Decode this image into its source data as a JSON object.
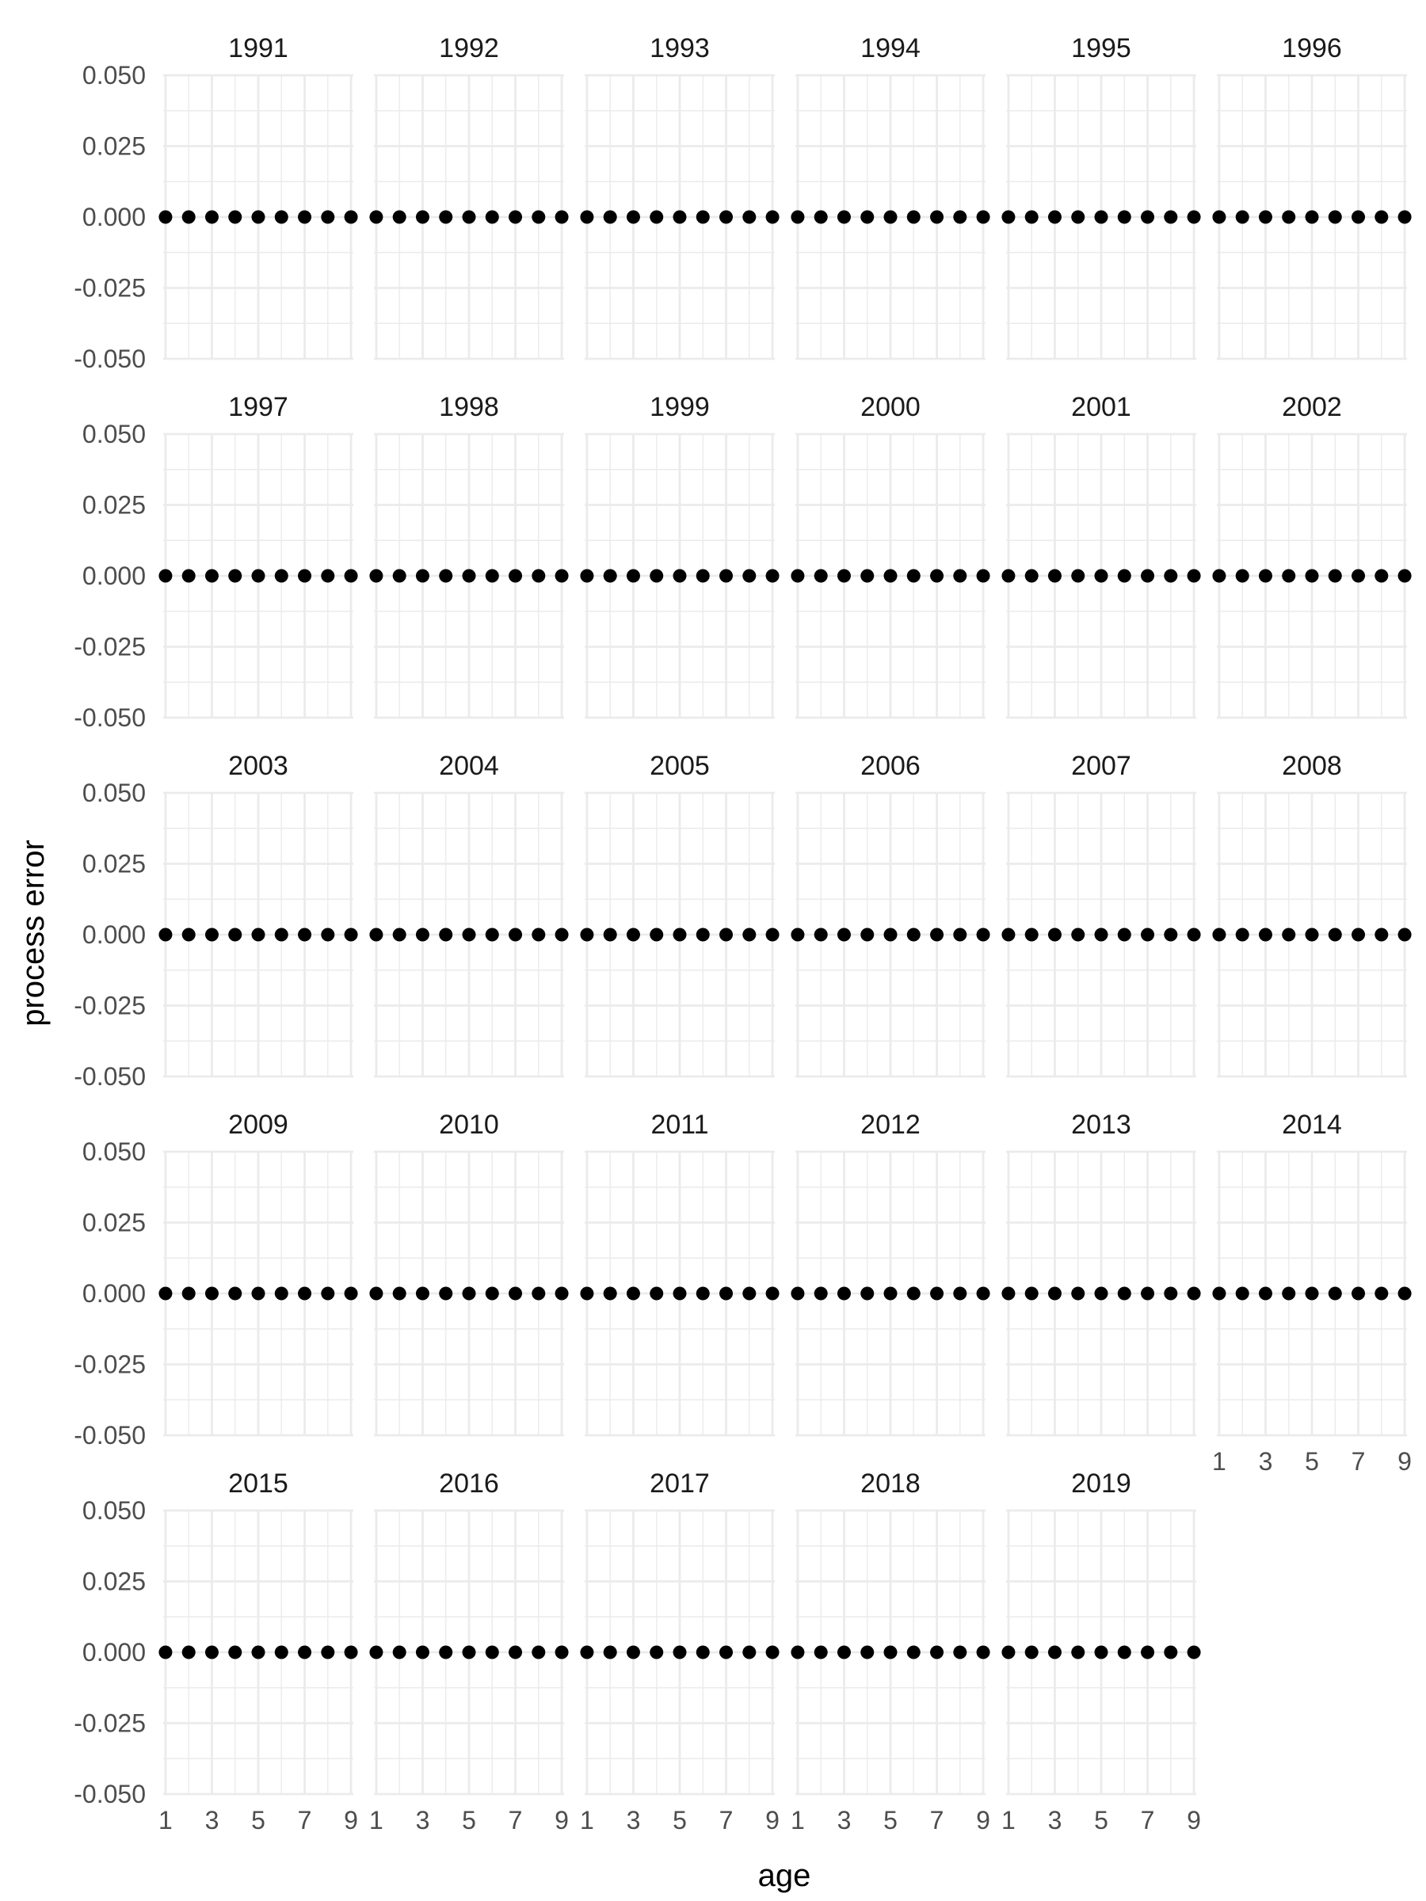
{
  "chart_data": {
    "type": "scatter",
    "layout": "facet grid, 6 columns",
    "xlabel": "age",
    "ylabel": "process error",
    "xlim": [
      0.9,
      9.1
    ],
    "ylim": [
      -0.05,
      0.05
    ],
    "x_ticks": [
      1,
      3,
      5,
      7,
      9
    ],
    "y_ticks": [
      -0.05,
      -0.025,
      0.0,
      0.025,
      0.05
    ],
    "y_tick_labels": [
      "-0.050",
      "-0.025",
      "0.000",
      "0.025",
      "0.050"
    ],
    "x_tick_labels": [
      "1",
      "3",
      "5",
      "7",
      "9"
    ],
    "grid": true,
    "point_color": "#000000",
    "x": [
      1,
      2,
      3,
      4,
      5,
      6,
      7,
      8,
      9
    ],
    "panels": [
      {
        "label": "1991",
        "values": [
          0,
          0,
          0,
          0,
          0,
          0,
          0,
          0,
          0
        ]
      },
      {
        "label": "1992",
        "values": [
          0,
          0,
          0,
          0,
          0,
          0,
          0,
          0,
          0
        ]
      },
      {
        "label": "1993",
        "values": [
          0,
          0,
          0,
          0,
          0,
          0,
          0,
          0,
          0
        ]
      },
      {
        "label": "1994",
        "values": [
          0,
          0,
          0,
          0,
          0,
          0,
          0,
          0,
          0
        ]
      },
      {
        "label": "1995",
        "values": [
          0,
          0,
          0,
          0,
          0,
          0,
          0,
          0,
          0
        ]
      },
      {
        "label": "1996",
        "values": [
          0,
          0,
          0,
          0,
          0,
          0,
          0,
          0,
          0
        ]
      },
      {
        "label": "1997",
        "values": [
          0,
          0,
          0,
          0,
          0,
          0,
          0,
          0,
          0
        ]
      },
      {
        "label": "1998",
        "values": [
          0,
          0,
          0,
          0,
          0,
          0,
          0,
          0,
          0
        ]
      },
      {
        "label": "1999",
        "values": [
          0,
          0,
          0,
          0,
          0,
          0,
          0,
          0,
          0
        ]
      },
      {
        "label": "2000",
        "values": [
          0,
          0,
          0,
          0,
          0,
          0,
          0,
          0,
          0
        ]
      },
      {
        "label": "2001",
        "values": [
          0,
          0,
          0,
          0,
          0,
          0,
          0,
          0,
          0
        ]
      },
      {
        "label": "2002",
        "values": [
          0,
          0,
          0,
          0,
          0,
          0,
          0,
          0,
          0
        ]
      },
      {
        "label": "2003",
        "values": [
          0,
          0,
          0,
          0,
          0,
          0,
          0,
          0,
          0
        ]
      },
      {
        "label": "2004",
        "values": [
          0,
          0,
          0,
          0,
          0,
          0,
          0,
          0,
          0
        ]
      },
      {
        "label": "2005",
        "values": [
          0,
          0,
          0,
          0,
          0,
          0,
          0,
          0,
          0
        ]
      },
      {
        "label": "2006",
        "values": [
          0,
          0,
          0,
          0,
          0,
          0,
          0,
          0,
          0
        ]
      },
      {
        "label": "2007",
        "values": [
          0,
          0,
          0,
          0,
          0,
          0,
          0,
          0,
          0
        ]
      },
      {
        "label": "2008",
        "values": [
          0,
          0,
          0,
          0,
          0,
          0,
          0,
          0,
          0
        ]
      },
      {
        "label": "2009",
        "values": [
          0,
          0,
          0,
          0,
          0,
          0,
          0,
          0,
          0
        ]
      },
      {
        "label": "2010",
        "values": [
          0,
          0,
          0,
          0,
          0,
          0,
          0,
          0,
          0
        ]
      },
      {
        "label": "2011",
        "values": [
          0,
          0,
          0,
          0,
          0,
          0,
          0,
          0,
          0
        ]
      },
      {
        "label": "2012",
        "values": [
          0,
          0,
          0,
          0,
          0,
          0,
          0,
          0,
          0
        ]
      },
      {
        "label": "2013",
        "values": [
          0,
          0,
          0,
          0,
          0,
          0,
          0,
          0,
          0
        ]
      },
      {
        "label": "2014",
        "values": [
          0,
          0,
          0,
          0,
          0,
          0,
          0,
          0,
          0
        ]
      },
      {
        "label": "2015",
        "values": [
          0,
          0,
          0,
          0,
          0,
          0,
          0,
          0,
          0
        ]
      },
      {
        "label": "2016",
        "values": [
          0,
          0,
          0,
          0,
          0,
          0,
          0,
          0,
          0
        ]
      },
      {
        "label": "2017",
        "values": [
          0,
          0,
          0,
          0,
          0,
          0,
          0,
          0,
          0
        ]
      },
      {
        "label": "2018",
        "values": [
          0,
          0,
          0,
          0,
          0,
          0,
          0,
          0,
          0
        ]
      },
      {
        "label": "2019",
        "values": [
          0,
          0,
          0,
          0,
          0,
          0,
          0,
          0,
          0
        ]
      }
    ]
  }
}
